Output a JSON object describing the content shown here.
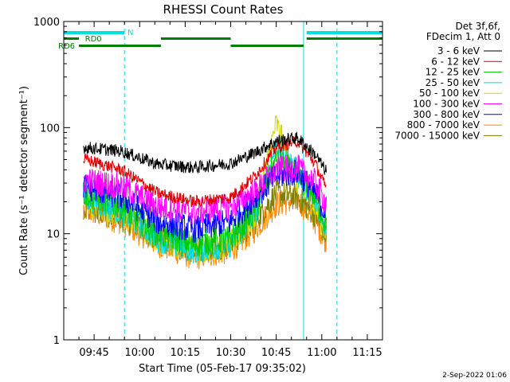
{
  "chart_data": {
    "type": "line",
    "title": "RHESSI Count Rates",
    "xlabel": "Start Time (05-Feb-17 09:35:02)",
    "ylabel": "Count Rate (s⁻¹ detector segment⁻¹)",
    "yscale": "log",
    "ylim": [
      1,
      1000
    ],
    "xlim": [
      "09:35",
      "11:20"
    ],
    "x_tick_labels": [
      "09:45",
      "10:00",
      "10:15",
      "10:30",
      "10:45",
      "11:00",
      "11:15"
    ],
    "x_tick_minutes": [
      585,
      600,
      615,
      630,
      645,
      660,
      675
    ],
    "y_tick_labels": [
      "1",
      "10",
      "100",
      "1000"
    ],
    "y_tick_values": [
      1,
      10,
      100,
      1000
    ],
    "data_window_minutes": [
      581.5,
      661.5
    ],
    "series": [
      {
        "name": "3 - 6 keV",
        "color": "#000000",
        "minutes": [
          582,
          594,
          606,
          618,
          630,
          638,
          645,
          652,
          658,
          661
        ],
        "values": [
          65,
          60,
          45,
          42,
          46,
          58,
          75,
          80,
          55,
          40
        ]
      },
      {
        "name": "6 - 12 keV",
        "color": "#e00000",
        "minutes": [
          582,
          594,
          606,
          618,
          630,
          638,
          645,
          652,
          658,
          661
        ],
        "values": [
          50,
          40,
          24,
          20,
          22,
          35,
          65,
          75,
          45,
          28
        ]
      },
      {
        "name": "12 - 25 keV",
        "color": "#00cc00",
        "minutes": [
          582,
          594,
          606,
          618,
          630,
          638,
          645,
          652,
          658,
          661
        ],
        "values": [
          24,
          18,
          10,
          8,
          9,
          16,
          50,
          35,
          22,
          13
        ]
      },
      {
        "name": "25 - 50 keV",
        "color": "#00d8e0",
        "minutes": [
          582,
          594,
          606,
          618,
          630,
          638,
          645,
          652,
          658,
          661
        ],
        "values": [
          22,
          16,
          9,
          7,
          8,
          15,
          70,
          38,
          20,
          12
        ]
      },
      {
        "name": "50 - 100 keV",
        "color": "#d8d800",
        "minutes": [
          582,
          594,
          606,
          618,
          630,
          638,
          645,
          652,
          658,
          661
        ],
        "values": [
          20,
          15,
          9,
          7,
          8,
          15,
          110,
          30,
          18,
          11
        ]
      },
      {
        "name": "100 - 300 keV",
        "color": "#ff00ff",
        "minutes": [
          582,
          594,
          606,
          618,
          630,
          638,
          645,
          652,
          658,
          661
        ],
        "values": [
          32,
          28,
          18,
          16,
          18,
          25,
          40,
          42,
          30,
          20
        ]
      },
      {
        "name": "300 - 800 keV",
        "color": "#0000ff",
        "minutes": [
          582,
          594,
          606,
          618,
          630,
          638,
          645,
          652,
          658,
          661
        ],
        "values": [
          28,
          22,
          13,
          11,
          13,
          22,
          35,
          38,
          24,
          16
        ]
      },
      {
        "name": "800 - 7000 keV",
        "color": "#ff8800",
        "minutes": [
          582,
          594,
          606,
          618,
          630,
          638,
          645,
          652,
          658,
          661
        ],
        "values": [
          17,
          13,
          8,
          6,
          7,
          11,
          19,
          21,
          13,
          9
        ]
      },
      {
        "name": "7000 - 15000 keV",
        "color": "#808000",
        "minutes": [
          582,
          594,
          606,
          618,
          630,
          638,
          645,
          652,
          658,
          661
        ],
        "values": [
          18,
          14,
          9,
          7,
          8,
          13,
          24,
          22,
          15,
          10
        ]
      }
    ],
    "annotations": {
      "night_label": "N",
      "rd0_label": "RD0",
      "rd6_label": "RD6",
      "night_color": "#00e0e0",
      "rd_color": "#008000",
      "night_intervals": [
        [
          575,
          595
        ],
        [
          655,
          680
        ]
      ],
      "rd0_intervals": [
        [
          575,
          580
        ],
        [
          607,
          630
        ],
        [
          655,
          680
        ]
      ],
      "rd6_intervals": [
        [
          580,
          607
        ],
        [
          630,
          654
        ]
      ],
      "night_boundaries": [
        575,
        595,
        654,
        665
      ],
      "night_boundary_styles": [
        "solid",
        "dashed",
        "solid",
        "dashed"
      ]
    },
    "legend": {
      "position": "right",
      "header_line1": "Det 3f,6f,",
      "header_line2": "FDecim 1, Att 0"
    },
    "timestamp": "2-Sep-2022 01:06"
  }
}
